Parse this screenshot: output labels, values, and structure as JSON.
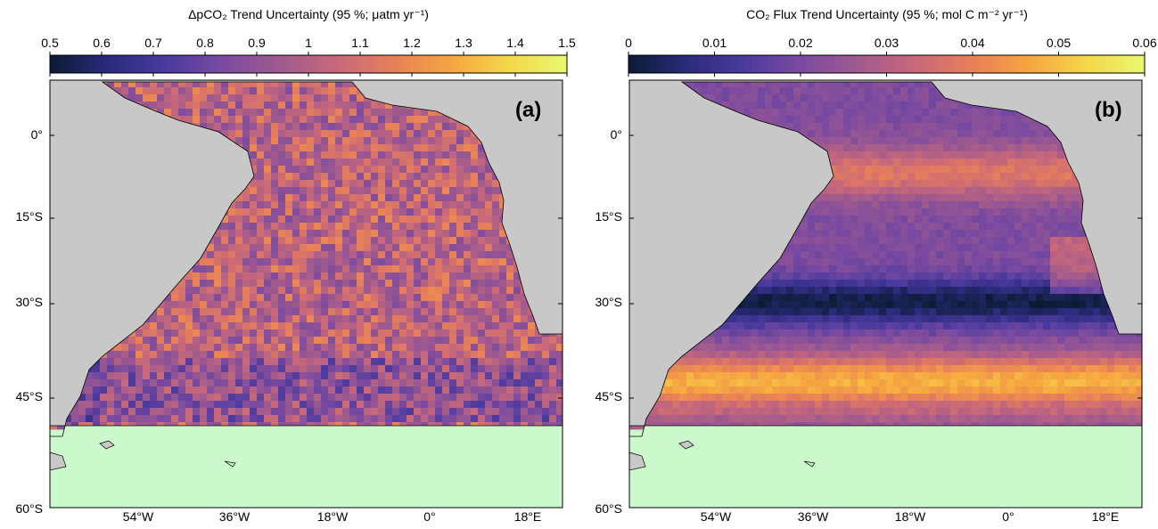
{
  "panels": [
    {
      "label": "(a)",
      "colorbar_title": "ΔpCO₂ Trend Uncertainty (95 %; μatm yr⁻¹)",
      "colorbar_ticks": [
        "0.5",
        "0.6",
        "0.7",
        "0.8",
        "0.9",
        "1",
        "1.1",
        "1.2",
        "1.3",
        "1.4",
        "1.5"
      ],
      "colorbar_range": [
        0.5,
        1.5
      ]
    },
    {
      "label": "(b)",
      "colorbar_title": "CO₂ Flux Trend Uncertainty (95 %; mol C m⁻² yr⁻¹)",
      "colorbar_ticks": [
        "0",
        "0.01",
        "0.02",
        "0.03",
        "0.04",
        "0.05",
        "0.06"
      ],
      "colorbar_range": [
        0,
        0.06
      ]
    }
  ],
  "lat_labels": [
    "0°",
    "15°S",
    "30°S",
    "45°S",
    "60°S"
  ],
  "lon_labels": [
    "54°W",
    "36°W",
    "18°W",
    "0°",
    "18°E"
  ],
  "colors": {
    "land": "#c8c8c8",
    "mask": "#ccf9cc",
    "colormap": [
      "#0a1c33",
      "#2a2a7a",
      "#4a3a9e",
      "#7a4aa0",
      "#a05a8e",
      "#c8687a",
      "#e88058",
      "#f6a640",
      "#f4d84a",
      "#e8f870"
    ]
  }
}
